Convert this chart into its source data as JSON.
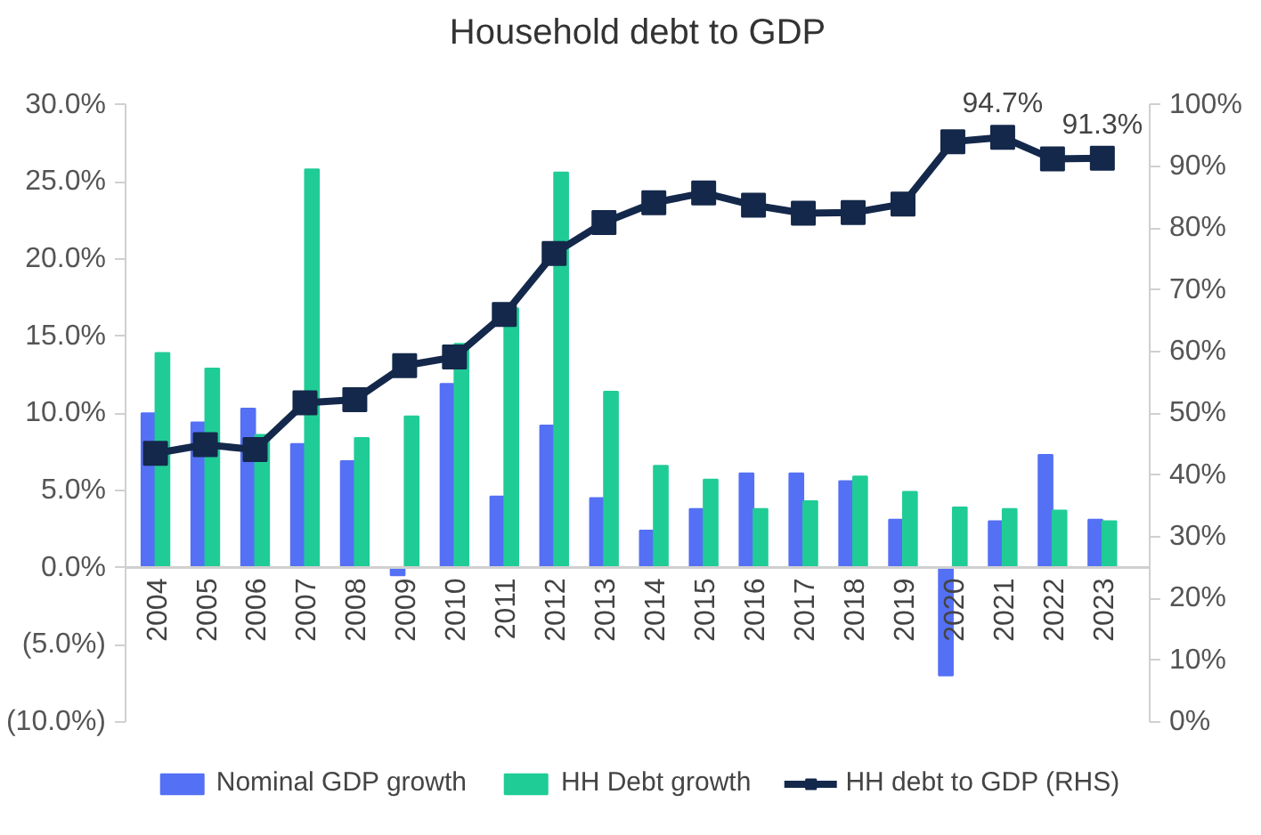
{
  "chart_data": {
    "type": "bar",
    "title": "Household debt to GDP",
    "categories": [
      "2004",
      "2005",
      "2006",
      "2007",
      "2008",
      "2009",
      "2010",
      "2011",
      "2012",
      "2013",
      "2014",
      "2015",
      "2016",
      "2017",
      "2018",
      "2019",
      "2020",
      "2021",
      "2022",
      "2023"
    ],
    "series": [
      {
        "name": "Nominal GDP growth",
        "color": "#5470f5",
        "values": [
          10.0,
          9.4,
          10.3,
          8.0,
          6.9,
          -0.5,
          11.9,
          4.6,
          9.2,
          4.5,
          2.4,
          3.8,
          6.1,
          6.1,
          5.6,
          3.1,
          -7.0,
          3.0,
          7.3,
          3.1
        ]
      },
      {
        "name": "HH Debt growth",
        "color": "#20cc96",
        "values": [
          13.9,
          12.9,
          8.6,
          25.8,
          8.4,
          9.8,
          14.5,
          16.8,
          25.6,
          11.4,
          6.6,
          5.7,
          3.8,
          4.3,
          5.9,
          4.9,
          3.9,
          3.8,
          3.7,
          3.0
        ]
      },
      {
        "name": "HH debt to GDP (RHS)",
        "type": "line",
        "axis": "y2",
        "color": "#14284b",
        "marker": "square",
        "values": [
          43.5,
          44.9,
          44.1,
          51.7,
          52.2,
          57.7,
          59.1,
          66.0,
          75.9,
          80.9,
          84.1,
          85.7,
          83.7,
          82.4,
          82.5,
          83.9,
          94.0,
          94.7,
          91.2,
          91.3
        ],
        "value_labels": [
          null,
          null,
          null,
          null,
          null,
          null,
          null,
          null,
          null,
          null,
          null,
          null,
          null,
          null,
          null,
          null,
          null,
          "94.7%",
          null,
          "91.3%"
        ]
      }
    ],
    "ylim": [
      -10,
      30
    ],
    "yticks": [
      {
        "value": -10,
        "label": "(10.0%)"
      },
      {
        "value": -5,
        "label": "(5.0%)"
      },
      {
        "value": 0,
        "label": "0.0%"
      },
      {
        "value": 5,
        "label": "5.0%"
      },
      {
        "value": 10,
        "label": "10.0%"
      },
      {
        "value": 15,
        "label": "15.0%"
      },
      {
        "value": 20,
        "label": "20.0%"
      },
      {
        "value": 25,
        "label": "25.0%"
      },
      {
        "value": 30,
        "label": "30.0%"
      }
    ],
    "y2lim": [
      0,
      100
    ],
    "y2ticks": [
      {
        "value": 0,
        "label": "0%"
      },
      {
        "value": 10,
        "label": "10%"
      },
      {
        "value": 20,
        "label": "20%"
      },
      {
        "value": 30,
        "label": "30%"
      },
      {
        "value": 40,
        "label": "40%"
      },
      {
        "value": 50,
        "label": "50%"
      },
      {
        "value": 60,
        "label": "60%"
      },
      {
        "value": 70,
        "label": "70%"
      },
      {
        "value": 80,
        "label": "80%"
      },
      {
        "value": 90,
        "label": "90%"
      },
      {
        "value": 100,
        "label": "100%"
      }
    ],
    "grid": false,
    "legend": "bottom"
  }
}
